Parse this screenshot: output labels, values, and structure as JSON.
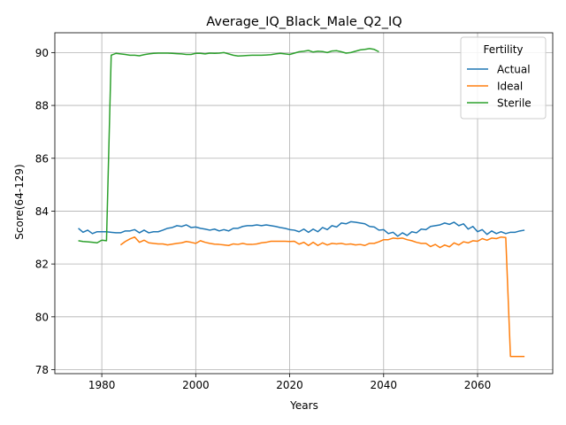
{
  "chart_data": {
    "type": "line",
    "title": "Average_IQ_Black_Male_Q2_IQ",
    "xlabel": "Years",
    "ylabel": "Score(64-129)",
    "xlim": [
      1970,
      2076
    ],
    "ylim": [
      77.85,
      90.75
    ],
    "xticks": [
      1980,
      2000,
      2020,
      2040,
      2060
    ],
    "yticks": [
      78,
      80,
      82,
      84,
      86,
      88,
      90
    ],
    "grid": true,
    "legend": {
      "title": "Fertility",
      "position": "top-right"
    },
    "series": [
      {
        "name": "Actual",
        "color": "#1f77b4",
        "x": [
          1975,
          1976,
          1977,
          1978,
          1979,
          1980,
          1981,
          1982,
          1983,
          1984,
          1985,
          1986,
          1987,
          1988,
          1989,
          1990,
          1991,
          1992,
          1993,
          1994,
          1995,
          1996,
          1997,
          1998,
          1999,
          2000,
          2001,
          2002,
          2003,
          2004,
          2005,
          2006,
          2007,
          2008,
          2009,
          2010,
          2011,
          2012,
          2013,
          2014,
          2015,
          2016,
          2017,
          2018,
          2019,
          2020,
          2021,
          2022,
          2023,
          2024,
          2025,
          2026,
          2027,
          2028,
          2029,
          2030,
          2031,
          2032,
          2033,
          2034,
          2035,
          2036,
          2037,
          2038,
          2039,
          2040,
          2041,
          2042,
          2043,
          2044,
          2045,
          2046,
          2047,
          2048,
          2049,
          2050,
          2051,
          2052,
          2053,
          2054,
          2055,
          2056,
          2057,
          2058,
          2059,
          2060,
          2061,
          2062,
          2063,
          2064,
          2065,
          2066,
          2067,
          2068,
          2069,
          2070
        ],
        "y": [
          83.35,
          83.2,
          83.28,
          83.15,
          83.22,
          83.22,
          83.22,
          83.2,
          83.18,
          83.18,
          83.25,
          83.25,
          83.3,
          83.18,
          83.28,
          83.18,
          83.22,
          83.22,
          83.28,
          83.35,
          83.38,
          83.45,
          83.42,
          83.48,
          83.38,
          83.4,
          83.35,
          83.32,
          83.28,
          83.32,
          83.25,
          83.3,
          83.25,
          83.35,
          83.35,
          83.42,
          83.45,
          83.45,
          83.48,
          83.45,
          83.48,
          83.45,
          83.42,
          83.38,
          83.35,
          83.3,
          83.28,
          83.22,
          83.32,
          83.2,
          83.32,
          83.22,
          83.38,
          83.3,
          83.45,
          83.4,
          83.55,
          83.52,
          83.6,
          83.58,
          83.55,
          83.52,
          83.42,
          83.4,
          83.28,
          83.3,
          83.15,
          83.2,
          83.05,
          83.18,
          83.08,
          83.22,
          83.18,
          83.32,
          83.3,
          83.42,
          83.45,
          83.48,
          83.55,
          83.5,
          83.58,
          83.45,
          83.52,
          83.32,
          83.42,
          83.22,
          83.3,
          83.12,
          83.25,
          83.15,
          83.22,
          83.15,
          83.2,
          83.2,
          83.25,
          83.28
        ]
      },
      {
        "name": "Ideal",
        "color": "#ff7f0e",
        "x": [
          1984,
          1985,
          1986,
          1987,
          1988,
          1989,
          1990,
          1991,
          1992,
          1993,
          1994,
          1995,
          1996,
          1997,
          1998,
          1999,
          2000,
          2001,
          2002,
          2003,
          2004,
          2005,
          2006,
          2007,
          2008,
          2009,
          2010,
          2011,
          2012,
          2013,
          2014,
          2015,
          2016,
          2017,
          2018,
          2019,
          2020,
          2021,
          2022,
          2023,
          2024,
          2025,
          2026,
          2027,
          2028,
          2029,
          2030,
          2031,
          2032,
          2033,
          2034,
          2035,
          2036,
          2037,
          2038,
          2039,
          2040,
          2041,
          2042,
          2043,
          2044,
          2045,
          2046,
          2047,
          2048,
          2049,
          2050,
          2051,
          2052,
          2053,
          2054,
          2055,
          2056,
          2057,
          2058,
          2059,
          2060,
          2061,
          2062,
          2063,
          2064,
          2065,
          2066,
          2067,
          2068,
          2069,
          2070
        ],
        "y": [
          82.72,
          82.85,
          82.95,
          83.02,
          82.82,
          82.9,
          82.8,
          82.78,
          82.76,
          82.76,
          82.72,
          82.75,
          82.78,
          82.8,
          82.85,
          82.82,
          82.78,
          82.88,
          82.82,
          82.78,
          82.75,
          82.74,
          82.72,
          82.7,
          82.76,
          82.74,
          82.78,
          82.74,
          82.74,
          82.76,
          82.8,
          82.82,
          82.86,
          82.86,
          82.86,
          82.86,
          82.85,
          82.86,
          82.75,
          82.82,
          82.7,
          82.82,
          82.7,
          82.8,
          82.72,
          82.78,
          82.76,
          82.78,
          82.74,
          82.76,
          82.72,
          82.74,
          82.7,
          82.78,
          82.78,
          82.84,
          82.92,
          82.92,
          82.98,
          82.96,
          82.98,
          82.92,
          82.88,
          82.82,
          82.78,
          82.78,
          82.66,
          82.74,
          82.62,
          82.72,
          82.65,
          82.8,
          82.72,
          82.84,
          82.8,
          82.88,
          82.86,
          82.96,
          82.9,
          82.98,
          82.96,
          83.02,
          83.0,
          78.5,
          78.5,
          78.5,
          78.5
        ]
      },
      {
        "name": "Sterile",
        "color": "#2ca02c",
        "x": [
          1975,
          1976,
          1977,
          1978,
          1979,
          1980,
          1981,
          1982,
          1983,
          1984,
          1985,
          1986,
          1987,
          1988,
          1989,
          1990,
          1991,
          1992,
          1993,
          1994,
          1995,
          1996,
          1997,
          1998,
          1999,
          2000,
          2001,
          2002,
          2003,
          2004,
          2005,
          2006,
          2007,
          2008,
          2009,
          2010,
          2011,
          2012,
          2013,
          2014,
          2015,
          2016,
          2017,
          2018,
          2019,
          2020,
          2021,
          2022,
          2023,
          2024,
          2025,
          2026,
          2027,
          2028,
          2029,
          2030,
          2031,
          2032,
          2033,
          2034,
          2035,
          2036,
          2037,
          2038,
          2039
        ],
        "y": [
          82.88,
          82.85,
          82.84,
          82.82,
          82.8,
          82.9,
          82.88,
          89.9,
          89.97,
          89.95,
          89.93,
          89.9,
          89.9,
          89.88,
          89.92,
          89.95,
          89.97,
          89.98,
          89.98,
          89.98,
          89.97,
          89.96,
          89.95,
          89.93,
          89.93,
          89.97,
          89.97,
          89.95,
          89.98,
          89.97,
          89.98,
          90.0,
          89.95,
          89.9,
          89.87,
          89.88,
          89.89,
          89.9,
          89.9,
          89.9,
          89.91,
          89.92,
          89.95,
          89.97,
          89.95,
          89.93,
          89.98,
          90.03,
          90.05,
          90.08,
          90.02,
          90.05,
          90.04,
          90.0,
          90.06,
          90.07,
          90.03,
          89.98,
          90.0,
          90.05,
          90.1,
          90.12,
          90.15,
          90.12,
          90.03
        ]
      }
    ]
  }
}
